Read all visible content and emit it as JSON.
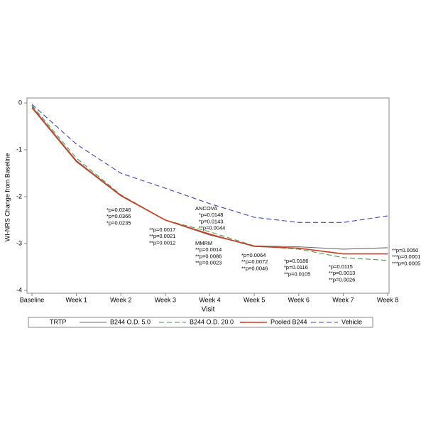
{
  "chart_data": {
    "type": "line",
    "xlabel": "Visit",
    "ylabel": "WI-NRS Change from Baseline",
    "categories": [
      "Baseline",
      "Week 1",
      "Week 2",
      "Week 3",
      "Week 4",
      "Week 5",
      "Week 6",
      "Week 7",
      "Week 8"
    ],
    "ylim": [
      -4,
      0
    ],
    "yticks": [
      -4,
      -3,
      -2,
      -1,
      0
    ],
    "legend_title": "TRTP",
    "series": [
      {
        "name": "B244 O.D. 5.0",
        "color": "#6b6b6b",
        "dash": "none",
        "values": [
          -0.08,
          -1.23,
          -1.97,
          -2.5,
          -2.82,
          -3.05,
          -3.07,
          -3.12,
          -3.09
        ]
      },
      {
        "name": "B244 O.D. 20.0",
        "color": "#4a9a4a",
        "dash": "7,4",
        "values": [
          -0.05,
          -1.18,
          -1.96,
          -2.5,
          -2.75,
          -3.05,
          -3.12,
          -3.3,
          -3.36
        ]
      },
      {
        "name": "Pooled B244",
        "color": "#d23a1e",
        "dash": "none",
        "values": [
          -0.1,
          -1.25,
          -1.98,
          -2.5,
          -2.8,
          -3.06,
          -3.1,
          -3.22,
          -3.22
        ]
      },
      {
        "name": "Vehicle",
        "color": "#4040d0",
        "dash": "7,4",
        "values": [
          -0.03,
          -0.88,
          -1.5,
          -1.82,
          -2.15,
          -2.44,
          -2.55,
          -2.55,
          -2.41
        ]
      }
    ],
    "annotations": [
      {
        "lines": [
          {
            "text": "*p=0.0246",
            "color": "#666666"
          },
          {
            "text": "*p=0.0366",
            "color": "#3a9a3a"
          },
          {
            "text": "*p=0.0235",
            "color": "#d03020"
          }
        ]
      },
      {
        "lines": [
          {
            "text": "**p=0.0017",
            "color": "#666666"
          },
          {
            "text": "**p=0.0021",
            "color": "#3a9a3a"
          },
          {
            "text": "**p=0.0012",
            "color": "#d03020"
          }
        ]
      },
      {
        "lines": [
          {
            "text": "ANCOVA",
            "color": "#000000"
          },
          {
            "text": "*p=0.0148",
            "color": "#666666"
          },
          {
            "text": "*p=0.0143",
            "color": "#3a9a3a"
          },
          {
            "text": "**p=0.0044",
            "color": "#d03020"
          }
        ]
      },
      {
        "lines": [
          {
            "text": "MMRM",
            "color": "#000000"
          },
          {
            "text": "**p=0.0014",
            "color": "#666666"
          },
          {
            "text": "**p=0.0086",
            "color": "#3a9a3a"
          },
          {
            "text": "**p=0.0023",
            "color": "#d03020"
          }
        ]
      },
      {
        "lines": [
          {
            "text": "*p=0.0064",
            "color": "#666666"
          },
          {
            "text": "**p=0.0072",
            "color": "#3a9a3a"
          },
          {
            "text": "**p=0.0046",
            "color": "#d03020"
          }
        ]
      },
      {
        "lines": [
          {
            "text": "*p=0.0186",
            "color": "#666666"
          },
          {
            "text": "*p=0.0116",
            "color": "#3a9a3a"
          },
          {
            "text": "**p=0.0105",
            "color": "#d03020"
          }
        ]
      },
      {
        "lines": [
          {
            "text": "*p=0.0115",
            "color": "#666666"
          },
          {
            "text": "**p=0.0013",
            "color": "#3a9a3a"
          },
          {
            "text": "**p=0.0026",
            "color": "#d03020"
          }
        ]
      },
      {
        "lines": [
          {
            "text": "**p=0.0050",
            "color": "#666666"
          },
          {
            "text": "***p=0.0001",
            "color": "#3a9a3a"
          },
          {
            "text": "***p=0.0005",
            "color": "#d03020"
          }
        ]
      }
    ]
  }
}
